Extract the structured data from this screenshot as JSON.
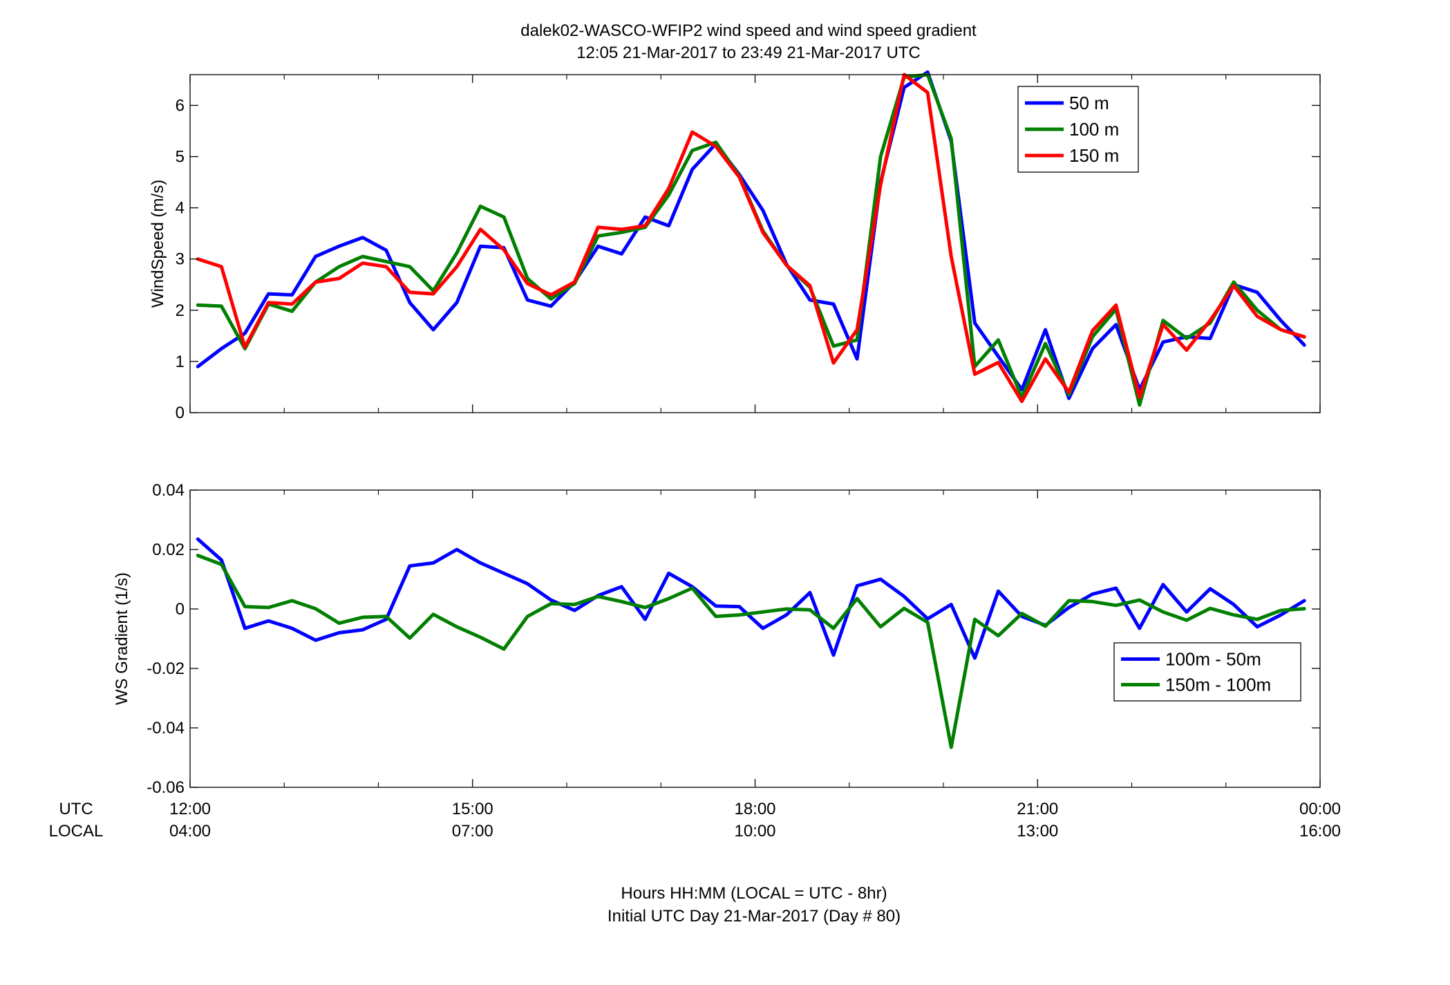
{
  "title_line1": "dalek02-WASCO-WFIP2  wind speed and wind speed gradient",
  "title_line2": "12:05 21-Mar-2017 to 23:49 21-Mar-2017  UTC",
  "xlabel_line1": "Hours HH:MM  (LOCAL = UTC - 8hr)",
  "xlabel_line2": "Initial UTC Day 21-Mar-2017 (Day # 80)",
  "row_label_utc": "UTC",
  "row_label_local": "LOCAL",
  "x_ticks_utc": [
    "12:00",
    "15:00",
    "18:00",
    "21:00",
    "00:00"
  ],
  "x_ticks_local": [
    "04:00",
    "07:00",
    "10:00",
    "13:00",
    "16:00"
  ],
  "x_tick_hours": [
    12,
    15,
    18,
    21,
    24
  ],
  "chart_data": [
    {
      "type": "line",
      "ylabel": "WindSpeed (m/s)",
      "xlim": [
        12,
        24
      ],
      "ylim": [
        0,
        6.6
      ],
      "yticks": [
        0,
        1,
        2,
        3,
        4,
        5,
        6
      ],
      "x": [
        12.083,
        12.333,
        12.583,
        12.833,
        13.083,
        13.333,
        13.583,
        13.833,
        14.083,
        14.333,
        14.583,
        14.833,
        15.083,
        15.333,
        15.583,
        15.833,
        16.083,
        16.333,
        16.583,
        16.833,
        17.083,
        17.333,
        17.583,
        17.833,
        18.083,
        18.333,
        18.583,
        18.833,
        19.083,
        19.333,
        19.583,
        19.833,
        20.083,
        20.333,
        20.583,
        20.833,
        21.083,
        21.333,
        21.583,
        21.833,
        22.083,
        22.333,
        22.583,
        22.833,
        23.083,
        23.333,
        23.583,
        23.833
      ],
      "series": [
        {
          "name": "50 m",
          "color": "#0000ff",
          "values": [
            0.9,
            1.25,
            1.55,
            2.32,
            2.3,
            3.05,
            3.25,
            3.42,
            3.17,
            2.15,
            1.62,
            2.15,
            3.25,
            3.22,
            2.2,
            2.08,
            2.55,
            3.25,
            3.1,
            3.82,
            3.65,
            4.75,
            5.25,
            4.65,
            3.95,
            2.9,
            2.2,
            2.12,
            1.05,
            4.5,
            6.35,
            6.65,
            5.3,
            1.75,
            1.1,
            0.45,
            1.62,
            0.28,
            1.25,
            1.72,
            0.45,
            1.38,
            1.48,
            1.45,
            2.5,
            2.35,
            1.8,
            1.32
          ]
        },
        {
          "name": "100 m",
          "color": "#007f00",
          "values": [
            2.1,
            2.08,
            1.25,
            2.12,
            1.98,
            2.55,
            2.85,
            3.05,
            2.95,
            2.85,
            2.38,
            3.12,
            4.03,
            3.82,
            2.62,
            2.22,
            2.52,
            3.45,
            3.52,
            3.62,
            4.25,
            5.12,
            5.28,
            4.62,
            3.55,
            2.88,
            2.45,
            1.3,
            1.42,
            5.0,
            6.55,
            6.6,
            5.35,
            0.9,
            1.42,
            0.3,
            1.35,
            0.35,
            1.48,
            2.02,
            0.15,
            1.8,
            1.45,
            1.75,
            2.55,
            2.0,
            1.62,
            1.48
          ]
        },
        {
          "name": "150 m",
          "color": "#ff0000",
          "values": [
            3.0,
            2.85,
            1.28,
            2.15,
            2.12,
            2.55,
            2.62,
            2.92,
            2.85,
            2.35,
            2.32,
            2.85,
            3.58,
            3.18,
            2.52,
            2.3,
            2.55,
            3.62,
            3.58,
            3.65,
            4.38,
            5.48,
            5.2,
            4.6,
            3.52,
            2.88,
            2.48,
            0.97,
            1.62,
            4.45,
            6.6,
            6.25,
            3.05,
            0.75,
            0.98,
            0.22,
            1.05,
            0.4,
            1.6,
            2.1,
            0.3,
            1.72,
            1.22,
            1.8,
            2.48,
            1.88,
            1.62,
            1.48
          ]
        }
      ],
      "legend": "top-right"
    },
    {
      "type": "line",
      "ylabel": "WS Gradient (1/s)",
      "xlim": [
        12,
        24
      ],
      "ylim": [
        -0.06,
        0.04
      ],
      "yticks": [
        -0.06,
        -0.04,
        -0.02,
        0,
        0.02,
        0.04
      ],
      "ytick_labels": [
        "-0.06",
        "-0.04",
        "-0.02",
        "0",
        "0.02",
        "0.04"
      ],
      "x": [
        12.083,
        12.333,
        12.583,
        12.833,
        13.083,
        13.333,
        13.583,
        13.833,
        14.083,
        14.333,
        14.583,
        14.833,
        15.083,
        15.333,
        15.583,
        15.833,
        16.083,
        16.333,
        16.583,
        16.833,
        17.083,
        17.333,
        17.583,
        17.833,
        18.083,
        18.333,
        18.583,
        18.833,
        19.083,
        19.333,
        19.583,
        19.833,
        20.083,
        20.333,
        20.583,
        20.833,
        21.083,
        21.333,
        21.583,
        21.833,
        22.083,
        22.333,
        22.583,
        22.833,
        23.083,
        23.333,
        23.583,
        23.833
      ],
      "series": [
        {
          "name": "100m - 50m",
          "color": "#0000ff",
          "values": [
            0.0235,
            0.0165,
            -0.0065,
            -0.004,
            -0.0065,
            -0.0105,
            -0.008,
            -0.007,
            -0.0035,
            0.0145,
            0.0155,
            0.02,
            0.0155,
            0.012,
            0.0085,
            0.003,
            -0.0005,
            0.0045,
            0.0075,
            -0.0035,
            0.012,
            0.0075,
            0.001,
            0.0008,
            -0.0065,
            -0.002,
            0.0055,
            -0.0155,
            0.0078,
            0.01,
            0.0042,
            -0.0033,
            0.0015,
            -0.0165,
            0.006,
            -0.0025,
            -0.0055,
            0.0005,
            0.005,
            0.007,
            -0.0065,
            0.0082,
            -0.001,
            0.0068,
            0.0015,
            -0.006,
            -0.002,
            0.0028
          ]
        },
        {
          "name": "150m - 100m",
          "color": "#007f00",
          "values": [
            0.018,
            0.015,
            0.0008,
            0.0005,
            0.0028,
            0.0001,
            -0.0048,
            -0.0028,
            -0.0025,
            -0.0098,
            -0.0018,
            -0.006,
            -0.0095,
            -0.0135,
            -0.0025,
            0.0018,
            0.0015,
            0.0042,
            0.0025,
            0.0005,
            0.0035,
            0.007,
            -0.0025,
            -0.002,
            -0.001,
            0.0,
            -0.0003,
            -0.0065,
            0.0035,
            -0.006,
            0.0002,
            -0.0045,
            -0.0465,
            -0.0035,
            -0.009,
            -0.0015,
            -0.0058,
            0.0028,
            0.0025,
            0.0012,
            0.003,
            -0.001,
            -0.0038,
            0.0002,
            -0.002,
            -0.0035,
            -0.0005,
            0.0001
          ]
        }
      ],
      "legend": "center-right"
    }
  ]
}
